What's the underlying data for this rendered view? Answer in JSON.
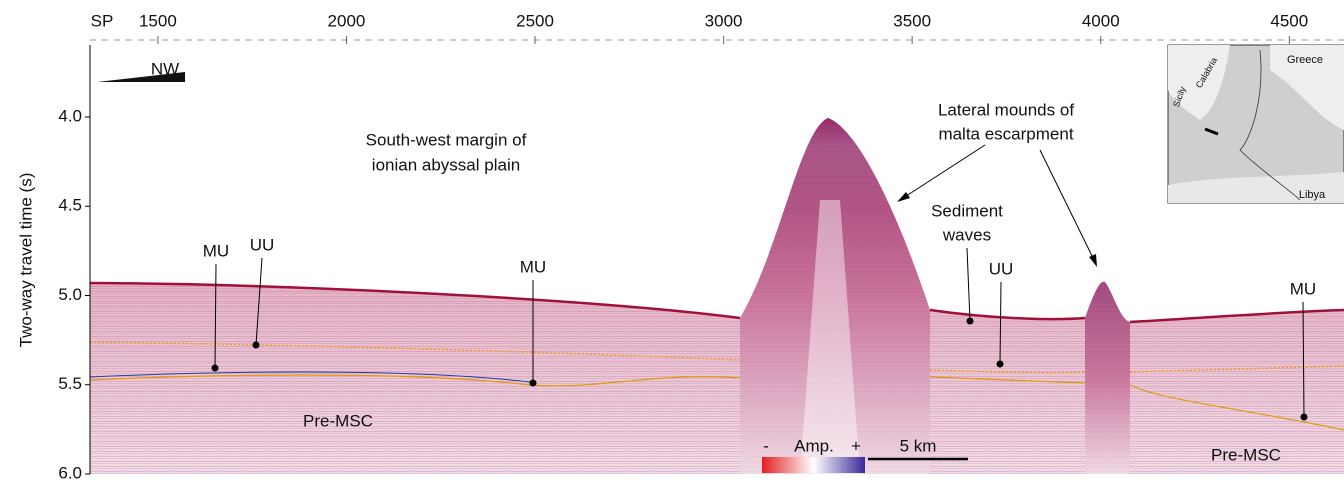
{
  "chart_data": {
    "type": "seismic",
    "x_axis_label": "SP",
    "y_axis_label": "Two-way travel time (s)",
    "xlim": [
      1320,
      4645
    ],
    "xticks": [
      1500,
      2000,
      2500,
      3000,
      3500,
      4000,
      4500
    ],
    "ylim": [
      3.6,
      6.0
    ],
    "y_inverted": true,
    "yticks": [
      {
        "value": 4.0,
        "label": "4.0"
      },
      4.5,
      {
        "value": 5.0,
        "label": "5.0"
      },
      5.5,
      {
        "value": 6.0,
        "label": "6.0"
      }
    ],
    "annotations": [
      "NW",
      "South-west margin of",
      "ionian abyssal plain",
      "Lateral mounds of",
      "malta escarpment",
      "Sediment",
      "waves",
      "MU",
      "UU",
      "MU",
      "UU",
      "MU",
      "Pre-MSC",
      "Pre-MSC"
    ],
    "colorbar": {
      "label": "Amp.",
      "min_label": "-",
      "max_label": "+"
    },
    "scale_bar": "5 km",
    "inset_map": {
      "labels": [
        "Greece",
        "Sicily",
        "Calabria",
        "Libya"
      ]
    }
  }
}
